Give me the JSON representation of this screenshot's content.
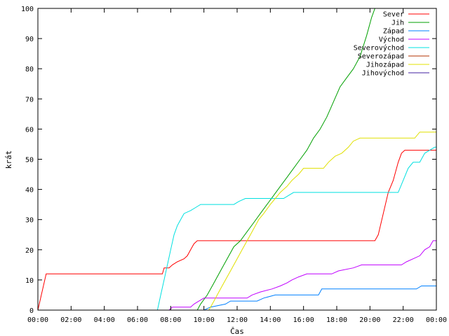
{
  "chart_data": {
    "type": "line",
    "xlabel": "Čas",
    "ylabel": "krát",
    "xlim": [
      0,
      24
    ],
    "ylim": [
      0,
      100
    ],
    "x_ticks": [
      {
        "value": 0,
        "label": "00:00"
      },
      {
        "value": 2,
        "label": "02:00"
      },
      {
        "value": 4,
        "label": "04:00"
      },
      {
        "value": 6,
        "label": "06:00"
      },
      {
        "value": 8,
        "label": "08:00"
      },
      {
        "value": 10,
        "label": "10:00"
      },
      {
        "value": 12,
        "label": "12:00"
      },
      {
        "value": 14,
        "label": "14:00"
      },
      {
        "value": 16,
        "label": "16:00"
      },
      {
        "value": 18,
        "label": "18:00"
      },
      {
        "value": 20,
        "label": "20:00"
      },
      {
        "value": 22,
        "label": "22:00"
      },
      {
        "value": 24,
        "label": "00:00"
      }
    ],
    "y_ticks": [
      0,
      10,
      20,
      30,
      40,
      50,
      60,
      70,
      80,
      90,
      100
    ],
    "grid": false,
    "legend_position": "top-right",
    "series": [
      {
        "name": "Sever",
        "color": "#ff0000",
        "points": [
          [
            0,
            0
          ],
          [
            0.5,
            12
          ],
          [
            7.5,
            12
          ],
          [
            7.6,
            14
          ],
          [
            7.9,
            14
          ],
          [
            8.1,
            15
          ],
          [
            8.4,
            16
          ],
          [
            8.8,
            17
          ],
          [
            9.0,
            18
          ],
          [
            9.2,
            20
          ],
          [
            9.4,
            22
          ],
          [
            9.6,
            23
          ],
          [
            20.3,
            23
          ],
          [
            20.5,
            25
          ],
          [
            20.8,
            32
          ],
          [
            21.1,
            39
          ],
          [
            21.4,
            43
          ],
          [
            21.7,
            49
          ],
          [
            21.9,
            52
          ],
          [
            22.1,
            53
          ],
          [
            24,
            53
          ]
        ]
      },
      {
        "name": "Jih",
        "color": "#00a000",
        "points": [
          [
            9.6,
            0
          ],
          [
            9.8,
            2
          ],
          [
            10.2,
            5
          ],
          [
            10.6,
            9
          ],
          [
            11.0,
            13
          ],
          [
            11.4,
            17
          ],
          [
            11.8,
            21
          ],
          [
            12.2,
            23
          ],
          [
            12.6,
            26
          ],
          [
            13.0,
            29
          ],
          [
            13.4,
            32
          ],
          [
            13.8,
            35
          ],
          [
            14.2,
            38
          ],
          [
            14.6,
            41
          ],
          [
            15.0,
            44
          ],
          [
            15.4,
            47
          ],
          [
            15.8,
            50
          ],
          [
            16.2,
            53
          ],
          [
            16.6,
            57
          ],
          [
            17.0,
            60
          ],
          [
            17.4,
            64
          ],
          [
            17.8,
            69
          ],
          [
            18.2,
            74
          ],
          [
            18.6,
            77
          ],
          [
            19.0,
            80
          ],
          [
            19.4,
            84
          ],
          [
            19.8,
            91
          ],
          [
            20.1,
            97
          ],
          [
            20.3,
            100
          ]
        ]
      },
      {
        "name": "Západ",
        "color": "#0080ff",
        "points": [
          [
            10.0,
            0
          ],
          [
            10.4,
            1
          ],
          [
            11.3,
            2
          ],
          [
            11.6,
            3
          ],
          [
            13.2,
            3
          ],
          [
            13.6,
            4
          ],
          [
            14.3,
            5
          ],
          [
            16.9,
            5
          ],
          [
            17.1,
            7
          ],
          [
            22.8,
            7
          ],
          [
            23.1,
            8
          ],
          [
            24,
            8
          ]
        ]
      },
      {
        "name": "Východ",
        "color": "#c000ff",
        "points": [
          [
            7.9,
            0
          ],
          [
            8.1,
            1
          ],
          [
            9.2,
            1
          ],
          [
            9.4,
            2
          ],
          [
            9.7,
            3
          ],
          [
            10.0,
            4
          ],
          [
            12.6,
            4
          ],
          [
            12.9,
            5
          ],
          [
            13.4,
            6
          ],
          [
            14.1,
            7
          ],
          [
            14.6,
            8
          ],
          [
            15.0,
            9
          ],
          [
            15.3,
            10
          ],
          [
            15.7,
            11
          ],
          [
            16.2,
            12
          ],
          [
            17.7,
            12
          ],
          [
            18.1,
            13
          ],
          [
            19.0,
            14
          ],
          [
            19.5,
            15
          ],
          [
            21.9,
            15
          ],
          [
            22.2,
            16
          ],
          [
            22.6,
            17
          ],
          [
            23.0,
            18
          ],
          [
            23.3,
            20
          ],
          [
            23.6,
            21
          ],
          [
            23.8,
            23
          ],
          [
            24,
            23
          ]
        ]
      },
      {
        "name": "Severovýchod",
        "color": "#00e0e0",
        "points": [
          [
            7.2,
            0
          ],
          [
            7.4,
            5
          ],
          [
            7.6,
            10
          ],
          [
            7.8,
            15
          ],
          [
            8.0,
            20
          ],
          [
            8.2,
            25
          ],
          [
            8.4,
            28
          ],
          [
            8.6,
            30
          ],
          [
            8.8,
            32
          ],
          [
            9.2,
            33
          ],
          [
            9.5,
            34
          ],
          [
            9.8,
            35
          ],
          [
            11.8,
            35
          ],
          [
            12.1,
            36
          ],
          [
            12.5,
            37
          ],
          [
            14.8,
            37
          ],
          [
            15.1,
            38
          ],
          [
            15.4,
            39
          ],
          [
            21.7,
            39
          ],
          [
            22.0,
            43
          ],
          [
            22.3,
            47
          ],
          [
            22.6,
            49
          ],
          [
            23.0,
            49
          ],
          [
            23.3,
            52
          ],
          [
            23.6,
            53
          ],
          [
            23.9,
            54
          ],
          [
            24,
            54
          ]
        ]
      },
      {
        "name": "Severozápad",
        "color": "#b03000",
        "points": []
      },
      {
        "name": "Jihozápad",
        "color": "#e0e000",
        "points": [
          [
            10.3,
            0
          ],
          [
            10.6,
            3
          ],
          [
            11.0,
            7
          ],
          [
            11.3,
            10
          ],
          [
            11.7,
            14
          ],
          [
            12.0,
            17
          ],
          [
            12.3,
            20
          ],
          [
            12.7,
            24
          ],
          [
            13.0,
            27
          ],
          [
            13.3,
            30
          ],
          [
            13.6,
            32
          ],
          [
            14.0,
            35
          ],
          [
            14.3,
            37
          ],
          [
            14.6,
            39
          ],
          [
            15.0,
            41
          ],
          [
            15.3,
            43
          ],
          [
            15.7,
            45
          ],
          [
            16.0,
            47
          ],
          [
            17.2,
            47
          ],
          [
            17.5,
            49
          ],
          [
            17.9,
            51
          ],
          [
            18.3,
            52
          ],
          [
            18.7,
            54
          ],
          [
            19.0,
            56
          ],
          [
            19.4,
            57
          ],
          [
            22.7,
            57
          ],
          [
            23.0,
            59
          ],
          [
            24,
            59
          ]
        ]
      },
      {
        "name": "Jihovýchod",
        "color": "#4020a0",
        "points": []
      }
    ]
  }
}
